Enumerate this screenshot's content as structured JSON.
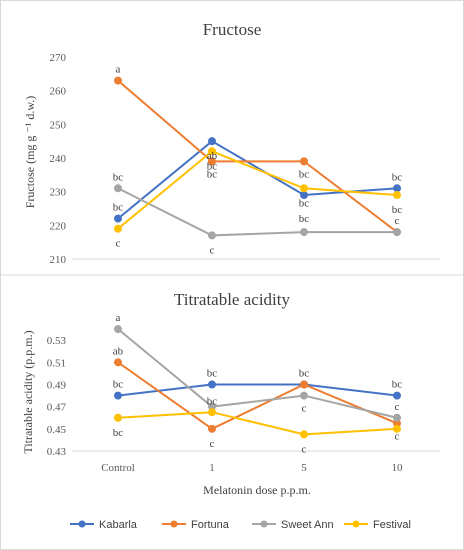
{
  "chart_data": [
    {
      "type": "line",
      "title": "Fructose",
      "ylabel": "Fructose (mg g ⁻¹ d.w.)",
      "xlabel": "",
      "categories": [
        "Control",
        "1",
        "5",
        "10"
      ],
      "show_category_labels": false,
      "ylim": [
        210,
        270
      ],
      "yticks": [
        210,
        220,
        230,
        240,
        250,
        260,
        270
      ],
      "grid": false,
      "series": [
        {
          "name": "Kabarla",
          "values": [
            222,
            245,
            229,
            231
          ],
          "letters": [
            "bc",
            "ab",
            "bc",
            "bc"
          ]
        },
        {
          "name": "Fortuna",
          "values": [
            263,
            239,
            239,
            218
          ],
          "letters": [
            "a",
            "bc",
            "bc",
            "c"
          ]
        },
        {
          "name": "Sweet Ann",
          "values": [
            231,
            217,
            218,
            218
          ],
          "letters": [
            "bc",
            "c",
            "",
            ""
          ]
        },
        {
          "name": "Festival",
          "values": [
            219,
            242,
            231,
            229
          ],
          "letters": [
            "c",
            "bc",
            "bc",
            "bc"
          ]
        }
      ]
    },
    {
      "type": "line",
      "title": "Titratable acidity",
      "ylabel": "Titratable acidity (p.p.m.)",
      "xlabel": "Melatonin dose p.p.m.",
      "categories": [
        "Control",
        "1",
        "5",
        "10"
      ],
      "show_category_labels": true,
      "ylim": [
        0.43,
        0.55
      ],
      "yticks": [
        0.43,
        0.45,
        0.47,
        0.49,
        0.51,
        0.53
      ],
      "grid": false,
      "series": [
        {
          "name": "Kabarla",
          "values": [
            0.48,
            0.49,
            0.49,
            0.48
          ],
          "letters": [
            "bc",
            "bc",
            "bc",
            "bc"
          ]
        },
        {
          "name": "Fortuna",
          "values": [
            0.51,
            0.45,
            0.49,
            0.455
          ],
          "letters": [
            "ab",
            "c",
            "",
            "c"
          ]
        },
        {
          "name": "Sweet Ann",
          "values": [
            0.54,
            0.47,
            0.48,
            0.46
          ],
          "letters": [
            "a",
            "bc",
            "c",
            "c"
          ]
        },
        {
          "name": "Festival",
          "values": [
            0.46,
            0.465,
            0.445,
            0.45
          ],
          "letters": [
            "bc",
            "",
            "c",
            ""
          ]
        }
      ]
    }
  ],
  "legend": {
    "placement": "bottom",
    "items": [
      {
        "name": "Kabarla",
        "color": "#4472C4"
      },
      {
        "name": "Fortuna",
        "color": "#ED7D31"
      },
      {
        "name": "Sweet Ann",
        "color": "#A5A5A5"
      },
      {
        "name": "Festival",
        "color": "#FFC000"
      }
    ]
  }
}
